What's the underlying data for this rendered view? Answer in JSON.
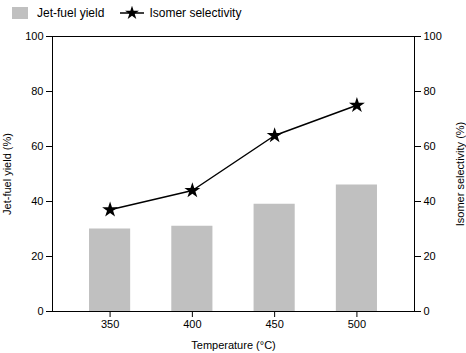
{
  "chart_data": {
    "type": "bar",
    "xlabel": "Temperature (°C)",
    "ylabel": "Jet-fuel yield (%)",
    "y2label": "Isomer selectivity (%)",
    "x": [
      350,
      400,
      450,
      500
    ],
    "series": [
      {
        "name": "Jet-fuel yield",
        "type": "bar",
        "color": "#c0c0c0",
        "values": [
          30,
          31,
          39,
          46
        ]
      },
      {
        "name": "Isomer selectivity",
        "type": "line",
        "color": "#000000",
        "marker": "star",
        "axis": "y2",
        "values": [
          37,
          44,
          64,
          75
        ]
      }
    ],
    "xlim": [
      315,
      535
    ],
    "xticks": [
      350,
      400,
      450,
      500
    ],
    "ylim": [
      0,
      100
    ],
    "yticks": [
      0,
      20,
      40,
      60,
      80,
      100
    ],
    "y2lim": [
      0,
      100
    ],
    "y2ticks": [
      0,
      20,
      40,
      60,
      80,
      100
    ],
    "legend": "upper left",
    "grid": false
  }
}
